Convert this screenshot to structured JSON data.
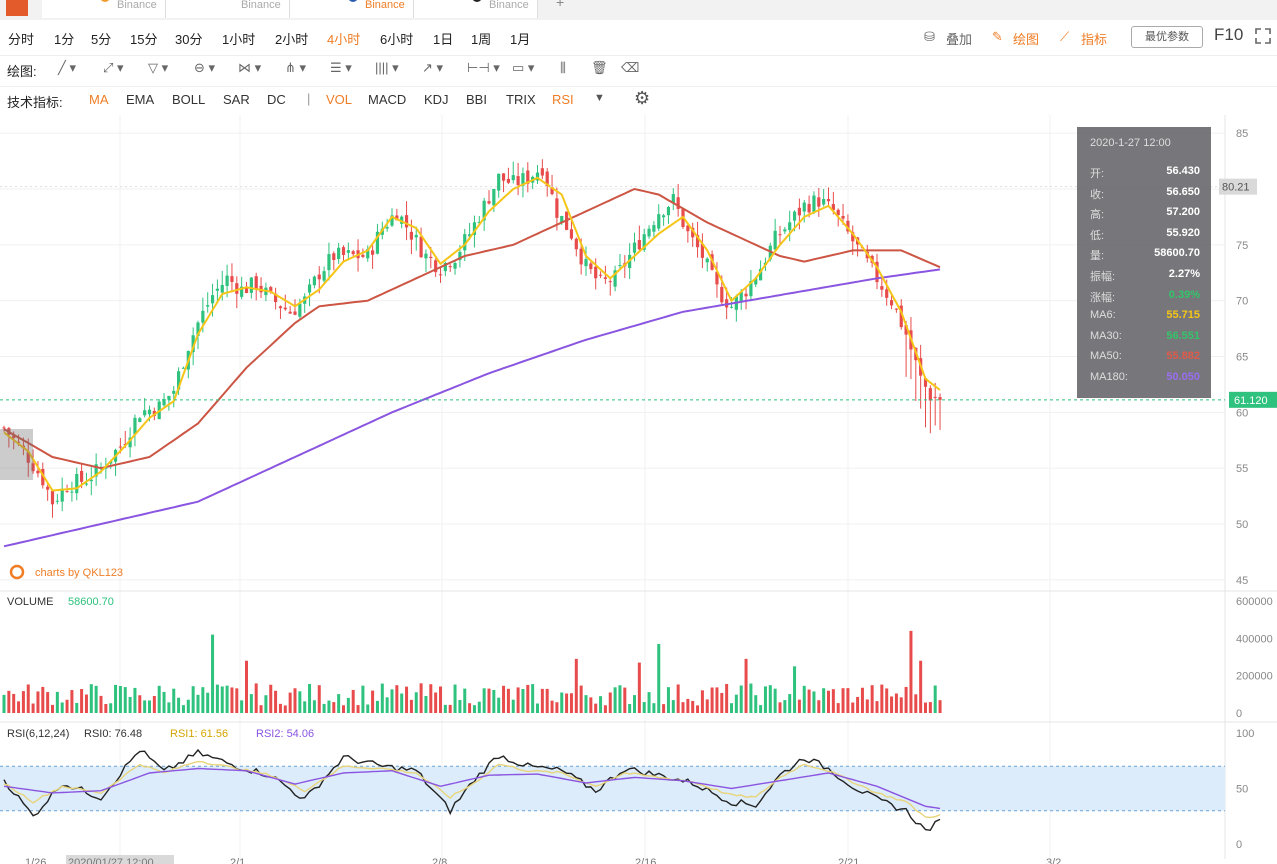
{
  "tabs": [
    {
      "label": "Binance",
      "dot": "#ef9b2d",
      "active": false
    },
    {
      "label": "Binance",
      "dot": "",
      "active": false
    },
    {
      "label": "Binance",
      "dot": "#2a5db0",
      "active": true
    },
    {
      "label": "Binance",
      "dot": "#222222",
      "active": false
    }
  ],
  "toolbar": {
    "timeframes": [
      "分时",
      "1分",
      "5分",
      "15分",
      "30分",
      "1小时",
      "2小时",
      "4小时",
      "6小时",
      "1日",
      "1周",
      "1月"
    ],
    "active_timeframe": "4小时",
    "overlay_label": "叠加",
    "draw_label": "绘图",
    "indicator_label": "指标",
    "best_params": "最优参数",
    "f10": "F10"
  },
  "drawbar": {
    "label": "绘图:"
  },
  "indicators": {
    "label": "技术指标:",
    "items": [
      "MA",
      "EMA",
      "BOLL",
      "SAR",
      "DC",
      "VOL",
      "MACD",
      "KDJ",
      "BBI",
      "TRIX",
      "RSI"
    ],
    "active": [
      "MA",
      "VOL",
      "RSI"
    ]
  },
  "tooltip": {
    "time": "2020-1-27 12:00",
    "rows": [
      {
        "k": "开:",
        "v": "56.430",
        "c": "#ffffff"
      },
      {
        "k": "收:",
        "v": "56.650",
        "c": "#ffffff"
      },
      {
        "k": "高:",
        "v": "57.200",
        "c": "#ffffff"
      },
      {
        "k": "低:",
        "v": "55.920",
        "c": "#ffffff"
      },
      {
        "k": "量:",
        "v": "58600.70",
        "c": "#ffffff"
      },
      {
        "k": "振幅:",
        "v": "2.27%",
        "c": "#ffffff"
      },
      {
        "k": "涨幅:",
        "v": "0.39%",
        "c": "#33c46a"
      },
      {
        "k": "MA6:",
        "v": "55.715",
        "c": "#f5c518"
      },
      {
        "k": "MA30:",
        "v": "56.551",
        "c": "#33c46a"
      },
      {
        "k": "MA50:",
        "v": "55.882",
        "c": "#e05a4a"
      },
      {
        "k": "MA180:",
        "v": "50.050",
        "c": "#9a6ef0"
      }
    ]
  },
  "watermark": "charts by QKL123",
  "volume_label": "VOLUME",
  "volume_value": "58600.70",
  "rsi_labels": {
    "params": "RSI(6,12,24)",
    "rsi0": "RSI0: 76.48",
    "rsi1": "RSI1: 61.56",
    "rsi2": "RSI2: 54.06"
  },
  "colors": {
    "up": "#2ec27e",
    "down": "#e84b4b",
    "ma6": "#f5c518",
    "ma50": "#cc5544",
    "ma180": "#8a55e0",
    "accent": "#ef7d26",
    "last": "#2ec27e"
  },
  "chart_data": [
    {
      "type": "candlestick",
      "title": "",
      "y_ticks": [
        85,
        80,
        75,
        70,
        65,
        60,
        55,
        50,
        45
      ],
      "ylim": [
        45,
        86
      ],
      "x_ticks": [
        "1/26",
        "2020/01/27 12:00",
        "2/1",
        "2/8",
        "2/16",
        "2/21",
        "3/2"
      ],
      "price_markers": {
        "high": "80.21",
        "last": "61.120"
      },
      "series_keypoints": {
        "close": [
          [
            0,
            58.6
          ],
          [
            5,
            56
          ],
          [
            8,
            54
          ],
          [
            10,
            52
          ],
          [
            13,
            53.5
          ],
          [
            17,
            54
          ],
          [
            20,
            55
          ],
          [
            24,
            57
          ],
          [
            28,
            60
          ],
          [
            32,
            60.5
          ],
          [
            35,
            62
          ],
          [
            38,
            66
          ],
          [
            40,
            68
          ],
          [
            43,
            70.5
          ],
          [
            46,
            72
          ],
          [
            49,
            71
          ],
          [
            52,
            71.5
          ],
          [
            55,
            70.2
          ],
          [
            59,
            69
          ],
          [
            62,
            70
          ],
          [
            65,
            72.5
          ],
          [
            68,
            74
          ],
          [
            72,
            74
          ],
          [
            75,
            74
          ],
          [
            78,
            76.5
          ],
          [
            81,
            78
          ],
          [
            84,
            76
          ],
          [
            87,
            74
          ],
          [
            90,
            73
          ],
          [
            93,
            74
          ],
          [
            96,
            76
          ],
          [
            99,
            78.5
          ],
          [
            102,
            81
          ],
          [
            105,
            80.5
          ],
          [
            108,
            81
          ],
          [
            111,
            82
          ],
          [
            114,
            78
          ],
          [
            117,
            76
          ],
          [
            120,
            73
          ],
          [
            123,
            71.5
          ],
          [
            126,
            72
          ],
          [
            129,
            74
          ],
          [
            132,
            76
          ],
          [
            135,
            78
          ],
          [
            138,
            79
          ],
          [
            141,
            76
          ],
          [
            144,
            74
          ],
          [
            147,
            71
          ],
          [
            150,
            69.5
          ],
          [
            153,
            71
          ],
          [
            156,
            73
          ],
          [
            159,
            75.5
          ],
          [
            162,
            77
          ],
          [
            165,
            78.5
          ],
          [
            168,
            79
          ],
          [
            171,
            78
          ],
          [
            174,
            76
          ],
          [
            177,
            74
          ],
          [
            180,
            72
          ],
          [
            183,
            70
          ],
          [
            186,
            67
          ],
          [
            189,
            63
          ],
          [
            191,
            61.5
          ],
          [
            193,
            61.12
          ]
        ],
        "ma6": [
          [
            0,
            58.2
          ],
          [
            5,
            56.5
          ],
          [
            10,
            53
          ],
          [
            15,
            53.2
          ],
          [
            20,
            54.7
          ],
          [
            25,
            57
          ],
          [
            30,
            59.5
          ],
          [
            35,
            61
          ],
          [
            40,
            67
          ],
          [
            45,
            70.6
          ],
          [
            50,
            71.2
          ],
          [
            55,
            70.8
          ],
          [
            60,
            69.5
          ],
          [
            65,
            71
          ],
          [
            70,
            73.5
          ],
          [
            75,
            74.5
          ],
          [
            80,
            77.5
          ],
          [
            85,
            76.5
          ],
          [
            90,
            73.3
          ],
          [
            95,
            75
          ],
          [
            100,
            78
          ],
          [
            105,
            80
          ],
          [
            110,
            81
          ],
          [
            115,
            79.5
          ],
          [
            120,
            74
          ],
          [
            125,
            72
          ],
          [
            130,
            74
          ],
          [
            135,
            76
          ],
          [
            140,
            77.5
          ],
          [
            145,
            74.5
          ],
          [
            150,
            70
          ],
          [
            155,
            72
          ],
          [
            160,
            75
          ],
          [
            165,
            77.5
          ],
          [
            170,
            78.5
          ],
          [
            175,
            76
          ],
          [
            180,
            73
          ],
          [
            185,
            69
          ],
          [
            190,
            63
          ],
          [
            193,
            62
          ]
        ],
        "ma50": [
          [
            0,
            58.5
          ],
          [
            10,
            56
          ],
          [
            20,
            55
          ],
          [
            30,
            56
          ],
          [
            40,
            59
          ],
          [
            50,
            64
          ],
          [
            60,
            68
          ],
          [
            65,
            69.5
          ],
          [
            75,
            70
          ],
          [
            85,
            72
          ],
          [
            95,
            74
          ],
          [
            105,
            75
          ],
          [
            115,
            77
          ],
          [
            125,
            79
          ],
          [
            130,
            80
          ],
          [
            135,
            79.5
          ],
          [
            145,
            77
          ],
          [
            150,
            76
          ],
          [
            160,
            74
          ],
          [
            165,
            73.5
          ],
          [
            175,
            74.5
          ],
          [
            185,
            74.5
          ],
          [
            193,
            73
          ]
        ],
        "ma180": [
          [
            0,
            48
          ],
          [
            20,
            50
          ],
          [
            40,
            52
          ],
          [
            60,
            56
          ],
          [
            80,
            60
          ],
          [
            100,
            63.5
          ],
          [
            120,
            66.5
          ],
          [
            140,
            69
          ],
          [
            160,
            70.5
          ],
          [
            180,
            72
          ],
          [
            193,
            72.8
          ]
        ]
      }
    },
    {
      "type": "bar",
      "title": "VOLUME",
      "ylim": [
        0,
        600000
      ],
      "y_ticks": [
        0,
        200000,
        400000,
        600000
      ],
      "spikes": [
        [
          43,
          420000
        ],
        [
          50,
          280000
        ],
        [
          118,
          290000
        ],
        [
          131,
          270000
        ],
        [
          135,
          370000
        ],
        [
          153,
          290000
        ],
        [
          163,
          250000
        ],
        [
          187,
          440000
        ],
        [
          189,
          280000
        ],
        [
          191,
          58600.7
        ]
      ]
    },
    {
      "type": "line",
      "title": "RSI(6,12,24)",
      "ylim": [
        0,
        100
      ],
      "y_ticks": [
        100,
        50,
        0
      ],
      "band": [
        30,
        70
      ],
      "series": [
        {
          "name": "RSI0",
          "keypoints": [
            [
              0,
              58
            ],
            [
              6,
              25
            ],
            [
              12,
              55
            ],
            [
              20,
              42
            ],
            [
              28,
              85
            ],
            [
              33,
              65
            ],
            [
              40,
              82
            ],
            [
              48,
              70
            ],
            [
              55,
              62
            ],
            [
              62,
              40
            ],
            [
              70,
              78
            ],
            [
              78,
              70
            ],
            [
              85,
              66
            ],
            [
              92,
              30
            ],
            [
              97,
              58
            ],
            [
              102,
              80
            ],
            [
              108,
              70
            ],
            [
              115,
              66
            ],
            [
              122,
              48
            ],
            [
              128,
              68
            ],
            [
              135,
              62
            ],
            [
              142,
              55
            ],
            [
              150,
              38
            ],
            [
              155,
              35
            ],
            [
              160,
              62
            ],
            [
              165,
              78
            ],
            [
              170,
              68
            ],
            [
              175,
              52
            ],
            [
              180,
              40
            ],
            [
              186,
              30
            ],
            [
              190,
              12
            ],
            [
              193,
              20
            ]
          ]
        },
        {
          "name": "RSI1",
          "keypoints": [
            [
              0,
              55
            ],
            [
              6,
              38
            ],
            [
              12,
              52
            ],
            [
              20,
              46
            ],
            [
              28,
              72
            ],
            [
              33,
              64
            ],
            [
              40,
              75
            ],
            [
              48,
              68
            ],
            [
              55,
              62
            ],
            [
              62,
              48
            ],
            [
              70,
              70
            ],
            [
              78,
              68
            ],
            [
              85,
              64
            ],
            [
              92,
              42
            ],
            [
              97,
              55
            ],
            [
              102,
              72
            ],
            [
              108,
              66
            ],
            [
              115,
              64
            ],
            [
              122,
              52
            ],
            [
              128,
              64
            ],
            [
              135,
              60
            ],
            [
              142,
              56
            ],
            [
              150,
              44
            ],
            [
              155,
              42
            ],
            [
              160,
              60
            ],
            [
              165,
              72
            ],
            [
              170,
              66
            ],
            [
              175,
              56
            ],
            [
              180,
              46
            ],
            [
              186,
              38
            ],
            [
              190,
              24
            ],
            [
              193,
              26
            ]
          ]
        },
        {
          "name": "RSI2",
          "keypoints": [
            [
              0,
              52
            ],
            [
              10,
              46
            ],
            [
              20,
              48
            ],
            [
              30,
              64
            ],
            [
              40,
              68
            ],
            [
              50,
              66
            ],
            [
              60,
              54
            ],
            [
              70,
              64
            ],
            [
              80,
              66
            ],
            [
              90,
              52
            ],
            [
              100,
              62
            ],
            [
              110,
              63
            ],
            [
              120,
              55
            ],
            [
              130,
              60
            ],
            [
              140,
              57
            ],
            [
              150,
              50
            ],
            [
              160,
              57
            ],
            [
              170,
              64
            ],
            [
              180,
              52
            ],
            [
              190,
              34
            ],
            [
              193,
              32
            ]
          ]
        }
      ]
    }
  ]
}
